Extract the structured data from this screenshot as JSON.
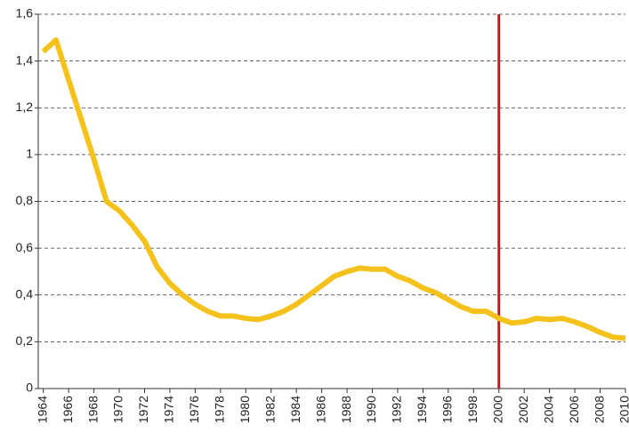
{
  "chart_data": {
    "type": "line",
    "x": [
      1964,
      1965,
      1966,
      1967,
      1968,
      1969,
      1970,
      1971,
      1972,
      1973,
      1974,
      1975,
      1976,
      1977,
      1978,
      1979,
      1980,
      1981,
      1982,
      1983,
      1984,
      1985,
      1986,
      1987,
      1988,
      1989,
      1990,
      1991,
      1992,
      1993,
      1994,
      1995,
      1996,
      1997,
      1998,
      1999,
      2000,
      2001,
      2002,
      2003,
      2004,
      2005,
      2006,
      2007,
      2008,
      2009,
      2010
    ],
    "series": [
      {
        "color": "#f5c21b",
        "values": [
          1.44,
          1.49,
          1.32,
          1.15,
          0.98,
          0.8,
          0.76,
          0.7,
          0.63,
          0.52,
          0.45,
          0.4,
          0.36,
          0.33,
          0.31,
          0.31,
          0.3,
          0.295,
          0.31,
          0.33,
          0.36,
          0.4,
          0.44,
          0.48,
          0.5,
          0.515,
          0.51,
          0.51,
          0.48,
          0.46,
          0.43,
          0.41,
          0.38,
          0.35,
          0.33,
          0.33,
          0.3,
          0.28,
          0.285,
          0.3,
          0.295,
          0.3,
          0.285,
          0.265,
          0.24,
          0.22,
          0.215
        ]
      }
    ],
    "xlim": [
      1963.6,
      2010
    ],
    "xticks": [
      1964,
      1966,
      1968,
      1970,
      1972,
      1974,
      1976,
      1978,
      1980,
      1982,
      1984,
      1986,
      1988,
      1990,
      1992,
      1994,
      1996,
      1998,
      2000,
      2002,
      2004,
      2006,
      2008,
      2010
    ],
    "ylim": [
      0,
      1.6
    ],
    "yticks": [
      0,
      {
        "value": 0.2,
        "label": "0,2"
      },
      {
        "value": 0.4,
        "label": "0,4"
      },
      {
        "value": 0.6,
        "label": "0,6"
      },
      {
        "value": 0.8,
        "label": "0,8"
      },
      1,
      {
        "value": 1.2,
        "label": "1,2"
      },
      {
        "value": 1.4,
        "label": "1,4"
      },
      {
        "value": 1.6,
        "label": "1,6"
      }
    ],
    "grid": true,
    "vline": {
      "x": 2000,
      "color": "#b22222"
    }
  }
}
